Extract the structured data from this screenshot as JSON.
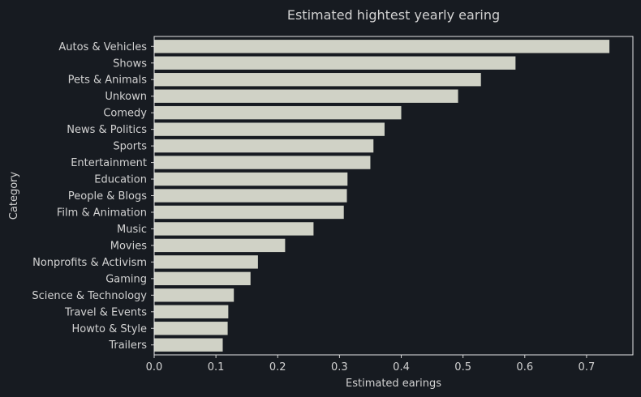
{
  "chart_data": {
    "type": "bar",
    "orientation": "horizontal",
    "title": "Estimated hightest yearly earing",
    "xlabel": "Estimated earings",
    "ylabel": "Category",
    "xlim": [
      0,
      0.775
    ],
    "xticks": [
      "0.0",
      "0.1",
      "0.2",
      "0.3",
      "0.4",
      "0.5",
      "0.6",
      "0.7"
    ],
    "grid": false,
    "bar_color": "#d0d2c6",
    "background_color": "#171b21",
    "categories": [
      "Autos & Vehicles",
      "Shows",
      "Pets & Animals",
      "Unkown",
      "Comedy",
      "News & Politics",
      "Sports",
      "Entertainment",
      "Education",
      "People & Blogs",
      "Film & Animation",
      "Music",
      "Movies",
      "Nonprofits & Activism",
      "Gaming",
      "Science & Technology",
      "Travel & Events",
      "Howto & Style",
      "Trailers"
    ],
    "values": [
      0.737,
      0.585,
      0.529,
      0.492,
      0.4,
      0.373,
      0.355,
      0.35,
      0.313,
      0.312,
      0.307,
      0.258,
      0.212,
      0.168,
      0.156,
      0.129,
      0.12,
      0.119,
      0.111
    ]
  }
}
